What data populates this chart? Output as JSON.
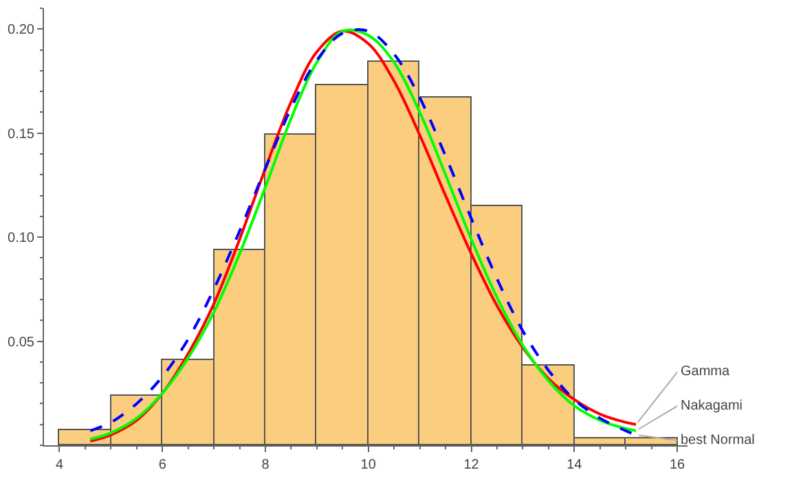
{
  "chart_data": {
    "type": "histogram",
    "bins": [
      4,
      5,
      6,
      7,
      8,
      9,
      10,
      11,
      12,
      13,
      14,
      15,
      16
    ],
    "values": [
      0.007,
      0.024,
      0.041,
      0.094,
      0.149,
      0.173,
      0.184,
      0.167,
      0.115,
      0.038,
      0.003,
      0.003
    ],
    "color": "#fbcd7f",
    "series": [
      {
        "type": "line",
        "name": "Gamma",
        "color": "#ff0000",
        "line_style": "solid",
        "x": [
          4.6,
          5,
          5.5,
          6,
          6.5,
          7,
          7.5,
          8,
          8.5,
          9,
          9.5,
          10,
          10.5,
          11,
          11.5,
          12,
          12.5,
          13,
          13.5,
          14,
          14.5,
          15,
          15.2
        ],
        "values": [
          0.002,
          0.005,
          0.012,
          0.025,
          0.044,
          0.068,
          0.099,
          0.133,
          0.165,
          0.189,
          0.199,
          0.193,
          0.175,
          0.149,
          0.12,
          0.092,
          0.067,
          0.047,
          0.032,
          0.022,
          0.015,
          0.011,
          0.01
        ]
      },
      {
        "type": "line",
        "name": "Nakagami",
        "color": "#00ff00",
        "line_style": "solid",
        "x": [
          4.6,
          5,
          5.5,
          6,
          6.5,
          7,
          7.5,
          8,
          8.5,
          9,
          9.5,
          10,
          10.5,
          11,
          11.5,
          12,
          12.5,
          13,
          13.5,
          14,
          14.5,
          15,
          15.2
        ],
        "values": [
          0.003,
          0.006,
          0.013,
          0.025,
          0.042,
          0.064,
          0.092,
          0.124,
          0.157,
          0.184,
          0.199,
          0.197,
          0.184,
          0.16,
          0.13,
          0.099,
          0.071,
          0.048,
          0.031,
          0.019,
          0.012,
          0.008,
          0.007
        ]
      },
      {
        "type": "line",
        "name": "best Normal",
        "color": "#0000ff",
        "line_style": "dashed",
        "x": [
          4.6,
          5,
          5.5,
          6,
          6.5,
          7,
          7.5,
          8,
          8.5,
          9,
          9.5,
          10,
          10.5,
          11,
          11.5,
          12,
          12.5,
          13,
          13.5,
          14,
          14.5,
          15,
          15.2
        ],
        "values": [
          0.007,
          0.011,
          0.02,
          0.033,
          0.051,
          0.075,
          0.103,
          0.133,
          0.162,
          0.185,
          0.198,
          0.199,
          0.188,
          0.167,
          0.139,
          0.109,
          0.08,
          0.055,
          0.036,
          0.022,
          0.013,
          0.007,
          0.005
        ]
      }
    ],
    "xlim": [
      3.7,
      16.2
    ],
    "ylim": [
      0,
      0.21
    ],
    "xticks": [
      4,
      6,
      8,
      10,
      12,
      14,
      16
    ],
    "yticks": [
      {
        "value": 0.05,
        "label": "0.05"
      },
      {
        "value": 0.1,
        "label": "0.10"
      },
      {
        "value": 0.15,
        "label": "0.15"
      },
      {
        "value": 0.2,
        "label": "0.20"
      }
    ]
  }
}
